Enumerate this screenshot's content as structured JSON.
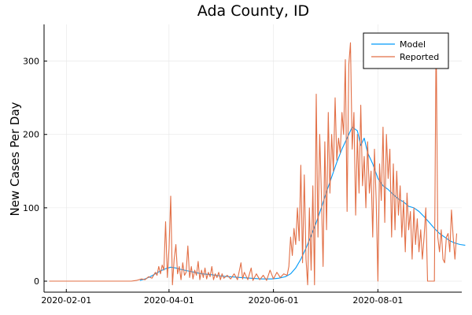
{
  "chart_data": {
    "type": "line",
    "title": "Ada County, ID",
    "xlabel": "",
    "ylabel": "New Cases Per Day",
    "x_ticks": [
      "2020-02-01",
      "2020-04-01",
      "2020-06-01",
      "2020-08-01"
    ],
    "y_ticks": [
      0,
      100,
      200,
      300
    ],
    "xlim": [
      "2020-01-19",
      "2020-09-19"
    ],
    "ylim": [
      -15,
      350
    ],
    "grid": true,
    "legend": {
      "position": "top-right"
    },
    "colors": {
      "Model": "#009af9",
      "Reported": "#e26f46"
    },
    "series": [
      {
        "name": "Model",
        "points": [
          [
            "2020-03-15",
            1
          ],
          [
            "2020-03-18",
            3
          ],
          [
            "2020-03-21",
            6
          ],
          [
            "2020-03-24",
            10
          ],
          [
            "2020-03-27",
            14
          ],
          [
            "2020-03-30",
            17
          ],
          [
            "2020-04-02",
            19
          ],
          [
            "2020-04-05",
            18
          ],
          [
            "2020-04-08",
            16
          ],
          [
            "2020-04-12",
            14
          ],
          [
            "2020-04-16",
            12
          ],
          [
            "2020-04-20",
            10
          ],
          [
            "2020-04-25",
            9
          ],
          [
            "2020-05-01",
            7
          ],
          [
            "2020-05-07",
            6
          ],
          [
            "2020-05-13",
            5
          ],
          [
            "2020-05-19",
            4
          ],
          [
            "2020-05-25",
            3
          ],
          [
            "2020-05-31",
            3
          ],
          [
            "2020-06-04",
            4
          ],
          [
            "2020-06-08",
            6
          ],
          [
            "2020-06-11",
            10
          ],
          [
            "2020-06-14",
            18
          ],
          [
            "2020-06-17",
            30
          ],
          [
            "2020-06-20",
            45
          ],
          [
            "2020-06-23",
            62
          ],
          [
            "2020-06-26",
            80
          ],
          [
            "2020-06-29",
            100
          ],
          [
            "2020-07-02",
            122
          ],
          [
            "2020-07-05",
            142
          ],
          [
            "2020-07-08",
            162
          ],
          [
            "2020-07-11",
            180
          ],
          [
            "2020-07-14",
            195
          ],
          [
            "2020-07-17",
            210
          ],
          [
            "2020-07-20",
            205
          ],
          [
            "2020-07-22",
            185
          ],
          [
            "2020-07-24",
            195
          ],
          [
            "2020-07-26",
            175
          ],
          [
            "2020-07-29",
            160
          ],
          [
            "2020-08-01",
            140
          ],
          [
            "2020-08-04",
            130
          ],
          [
            "2020-08-07",
            125
          ],
          [
            "2020-08-10",
            118
          ],
          [
            "2020-08-13",
            112
          ],
          [
            "2020-08-16",
            108
          ],
          [
            "2020-08-19",
            102
          ],
          [
            "2020-08-22",
            100
          ],
          [
            "2020-08-25",
            95
          ],
          [
            "2020-08-28",
            88
          ],
          [
            "2020-08-31",
            80
          ],
          [
            "2020-09-03",
            72
          ],
          [
            "2020-09-06",
            65
          ],
          [
            "2020-09-09",
            60
          ],
          [
            "2020-09-12",
            55
          ],
          [
            "2020-09-15",
            52
          ],
          [
            "2020-09-18",
            50
          ],
          [
            "2020-09-21",
            49
          ]
        ]
      },
      {
        "name": "Reported",
        "points": [
          [
            "2020-01-22",
            0
          ],
          [
            "2020-03-10",
            0
          ],
          [
            "2020-03-13",
            1
          ],
          [
            "2020-03-16",
            3
          ],
          [
            "2020-03-18",
            2
          ],
          [
            "2020-03-20",
            6
          ],
          [
            "2020-03-22",
            4
          ],
          [
            "2020-03-24",
            12
          ],
          [
            "2020-03-25",
            8
          ],
          [
            "2020-03-26",
            20
          ],
          [
            "2020-03-27",
            10
          ],
          [
            "2020-03-28",
            22
          ],
          [
            "2020-03-29",
            15
          ],
          [
            "2020-03-30",
            81
          ],
          [
            "2020-03-31",
            5
          ],
          [
            "2020-04-01",
            45
          ],
          [
            "2020-04-02",
            116
          ],
          [
            "2020-04-03",
            -5
          ],
          [
            "2020-04-04",
            30
          ],
          [
            "2020-04-05",
            50
          ],
          [
            "2020-04-06",
            10
          ],
          [
            "2020-04-07",
            20
          ],
          [
            "2020-04-08",
            2
          ],
          [
            "2020-04-09",
            25
          ],
          [
            "2020-04-10",
            8
          ],
          [
            "2020-04-11",
            12
          ],
          [
            "2020-04-12",
            48
          ],
          [
            "2020-04-13",
            5
          ],
          [
            "2020-04-14",
            20
          ],
          [
            "2020-04-15",
            3
          ],
          [
            "2020-04-16",
            15
          ],
          [
            "2020-04-17",
            8
          ],
          [
            "2020-04-18",
            27
          ],
          [
            "2020-04-19",
            2
          ],
          [
            "2020-04-20",
            15
          ],
          [
            "2020-04-21",
            5
          ],
          [
            "2020-04-22",
            18
          ],
          [
            "2020-04-23",
            3
          ],
          [
            "2020-04-24",
            12
          ],
          [
            "2020-04-25",
            6
          ],
          [
            "2020-04-26",
            20
          ],
          [
            "2020-04-27",
            2
          ],
          [
            "2020-04-28",
            10
          ],
          [
            "2020-04-29",
            5
          ],
          [
            "2020-04-30",
            12
          ],
          [
            "2020-05-01",
            2
          ],
          [
            "2020-05-02",
            10
          ],
          [
            "2020-05-03",
            4
          ],
          [
            "2020-05-05",
            8
          ],
          [
            "2020-05-07",
            3
          ],
          [
            "2020-05-09",
            10
          ],
          [
            "2020-05-11",
            2
          ],
          [
            "2020-05-13",
            25
          ],
          [
            "2020-05-14",
            3
          ],
          [
            "2020-05-15",
            12
          ],
          [
            "2020-05-17",
            2
          ],
          [
            "2020-05-19",
            18
          ],
          [
            "2020-05-20",
            1
          ],
          [
            "2020-05-22",
            10
          ],
          [
            "2020-05-24",
            2
          ],
          [
            "2020-05-26",
            8
          ],
          [
            "2020-05-28",
            1
          ],
          [
            "2020-05-30",
            15
          ],
          [
            "2020-06-01",
            3
          ],
          [
            "2020-06-03",
            12
          ],
          [
            "2020-06-05",
            5
          ],
          [
            "2020-06-07",
            10
          ],
          [
            "2020-06-09",
            8
          ],
          [
            "2020-06-10",
            20
          ],
          [
            "2020-06-11",
            60
          ],
          [
            "2020-06-12",
            35
          ],
          [
            "2020-06-13",
            72
          ],
          [
            "2020-06-14",
            50
          ],
          [
            "2020-06-15",
            100
          ],
          [
            "2020-06-16",
            55
          ],
          [
            "2020-06-17",
            158
          ],
          [
            "2020-06-18",
            25
          ],
          [
            "2020-06-19",
            145
          ],
          [
            "2020-06-20",
            30
          ],
          [
            "2020-06-21",
            -5
          ],
          [
            "2020-06-22",
            100
          ],
          [
            "2020-06-23",
            15
          ],
          [
            "2020-06-24",
            130
          ],
          [
            "2020-06-25",
            -5
          ],
          [
            "2020-06-26",
            255
          ],
          [
            "2020-06-27",
            60
          ],
          [
            "2020-06-28",
            200
          ],
          [
            "2020-06-29",
            120
          ],
          [
            "2020-06-30",
            20
          ],
          [
            "2020-07-01",
            190
          ],
          [
            "2020-07-02",
            70
          ],
          [
            "2020-07-03",
            230
          ],
          [
            "2020-07-04",
            120
          ],
          [
            "2020-07-05",
            200
          ],
          [
            "2020-07-06",
            150
          ],
          [
            "2020-07-07",
            250
          ],
          [
            "2020-07-08",
            165
          ],
          [
            "2020-07-09",
            195
          ],
          [
            "2020-07-10",
            175
          ],
          [
            "2020-07-11",
            230
          ],
          [
            "2020-07-12",
            200
          ],
          [
            "2020-07-13",
            302
          ],
          [
            "2020-07-14",
            95
          ],
          [
            "2020-07-15",
            295
          ],
          [
            "2020-07-16",
            325
          ],
          [
            "2020-07-17",
            180
          ],
          [
            "2020-07-18",
            230
          ],
          [
            "2020-07-19",
            90
          ],
          [
            "2020-07-20",
            200
          ],
          [
            "2020-07-21",
            120
          ],
          [
            "2020-07-22",
            240
          ],
          [
            "2020-07-23",
            130
          ],
          [
            "2020-07-24",
            170
          ],
          [
            "2020-07-25",
            100
          ],
          [
            "2020-07-26",
            190
          ],
          [
            "2020-07-27",
            120
          ],
          [
            "2020-07-28",
            150
          ],
          [
            "2020-07-29",
            60
          ],
          [
            "2020-07-30",
            180
          ],
          [
            "2020-07-31",
            110
          ],
          [
            "2020-08-01",
            0
          ],
          [
            "2020-08-02",
            160
          ],
          [
            "2020-08-03",
            110
          ],
          [
            "2020-08-04",
            210
          ],
          [
            "2020-08-05",
            80
          ],
          [
            "2020-08-06",
            200
          ],
          [
            "2020-08-07",
            140
          ],
          [
            "2020-08-08",
            180
          ],
          [
            "2020-08-09",
            60
          ],
          [
            "2020-08-10",
            160
          ],
          [
            "2020-08-11",
            70
          ],
          [
            "2020-08-12",
            150
          ],
          [
            "2020-08-13",
            90
          ],
          [
            "2020-08-14",
            130
          ],
          [
            "2020-08-15",
            60
          ],
          [
            "2020-08-16",
            110
          ],
          [
            "2020-08-17",
            40
          ],
          [
            "2020-08-18",
            120
          ],
          [
            "2020-08-19",
            70
          ],
          [
            "2020-08-20",
            95
          ],
          [
            "2020-08-21",
            30
          ],
          [
            "2020-08-22",
            100
          ],
          [
            "2020-08-23",
            50
          ],
          [
            "2020-08-24",
            85
          ],
          [
            "2020-08-25",
            40
          ],
          [
            "2020-08-26",
            70
          ],
          [
            "2020-08-27",
            30
          ],
          [
            "2020-08-28",
            60
          ],
          [
            "2020-08-29",
            100
          ],
          [
            "2020-08-30",
            0
          ],
          [
            "2020-09-01",
            0
          ],
          [
            "2020-09-03",
            0
          ],
          [
            "2020-09-04",
            338
          ],
          [
            "2020-09-05",
            60
          ],
          [
            "2020-09-06",
            40
          ],
          [
            "2020-09-07",
            70
          ],
          [
            "2020-09-08",
            30
          ],
          [
            "2020-09-09",
            25
          ],
          [
            "2020-09-10",
            60
          ],
          [
            "2020-09-11",
            65
          ],
          [
            "2020-09-12",
            40
          ],
          [
            "2020-09-13",
            97
          ],
          [
            "2020-09-14",
            60
          ],
          [
            "2020-09-15",
            30
          ],
          [
            "2020-09-16",
            65
          ]
        ]
      }
    ]
  }
}
